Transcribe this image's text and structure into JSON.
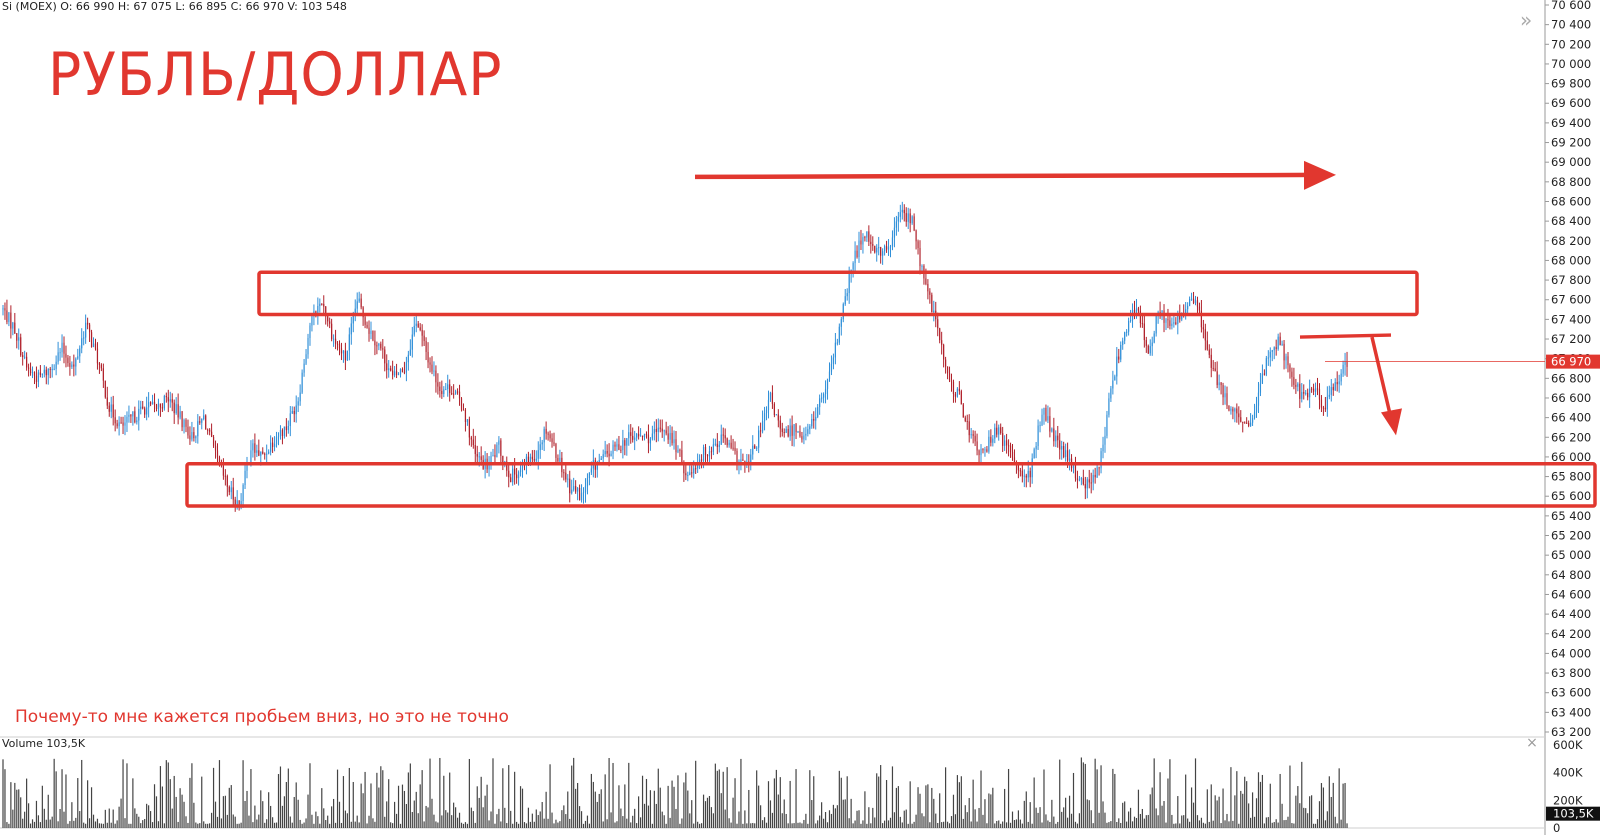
{
  "header": {
    "ohlc": "Si (MOEX) O: 66 990  H: 67 075  L: 66 895  C: 66 970  V: 103 548"
  },
  "title": "РУБЛЬ/ДОЛЛАР",
  "note": "Почему-то мне кажется пробьем вниз, но это не точно",
  "volume_label": "Volume 103,5K",
  "controls": {
    "close_glyph": "×",
    "collapse_glyph": "»"
  },
  "colors": {
    "up": "#2f8fd8",
    "down": "#b0202a",
    "annotation": "#e1372f",
    "volume": "#444444",
    "price_tag": "#e1372f"
  },
  "chart_data": [
    {
      "type": "candlestick",
      "title": "",
      "ylim": [
        63200,
        70600
      ],
      "y_ticks": [
        "70 600",
        "70 400",
        "70 200",
        "70 000",
        "69 800",
        "69 600",
        "69 400",
        "69 200",
        "69 000",
        "68 800",
        "68 600",
        "68 400",
        "68 200",
        "68 000",
        "67 800",
        "67 600",
        "67 400",
        "67 200",
        "67 000",
        "66 800",
        "66 600",
        "66 400",
        "66 200",
        "66 000",
        "65 800",
        "65 600",
        "65 400",
        "65 200",
        "65 000",
        "64 800",
        "64 600",
        "64 400",
        "64 200",
        "64 000",
        "63 800",
        "63 600",
        "63 400",
        "63 200"
      ],
      "last_price": 66970,
      "last_price_label": "66 970",
      "path_close": [
        67500,
        67300,
        66900,
        66800,
        66900,
        67100,
        66900,
        67350,
        67000,
        66500,
        66300,
        66400,
        66500,
        66500,
        66600,
        66400,
        66200,
        66400,
        66000,
        65700,
        65500,
        66100,
        66000,
        66200,
        66300,
        66600,
        67350,
        67600,
        67200,
        67000,
        67600,
        67300,
        67100,
        66800,
        66900,
        67400,
        67000,
        66700,
        66700,
        66500,
        66000,
        65900,
        66100,
        65800,
        65900,
        66000,
        66300,
        66000,
        65700,
        65600,
        65900,
        66000,
        66100,
        66200,
        66200,
        66200,
        66300,
        66100,
        65800,
        66000,
        66100,
        66200,
        66000,
        65900,
        66200,
        66600,
        66200,
        66300,
        66200,
        66500,
        66800,
        67400,
        68000,
        68300,
        68100,
        68100,
        68500,
        68400,
        67800,
        67400,
        66800,
        66600,
        66200,
        66000,
        66300,
        66100,
        65900,
        65800,
        66500,
        66200,
        66000,
        65800,
        65700,
        66000,
        66800,
        67300,
        67500,
        67100,
        67500,
        67300,
        67500,
        67600,
        67100,
        66700,
        66500,
        66300,
        66400,
        67000,
        67200,
        66900,
        66600,
        66700,
        66500,
        66800,
        67000
      ]
    },
    {
      "type": "bar",
      "title": "",
      "series_name": "Volume",
      "ylim": [
        0,
        600000
      ],
      "y_ticks": [
        "600K",
        "400K",
        "200K",
        "0"
      ],
      "last_value_label": "103,5K"
    }
  ],
  "annotations": {
    "resistance_zone": [
      67450,
      67880
    ],
    "support_zone": [
      65500,
      65930
    ],
    "trend_arrow_price": 68850,
    "breakdown_line_price": 67220,
    "breakdown_arrow_target": 66270
  }
}
